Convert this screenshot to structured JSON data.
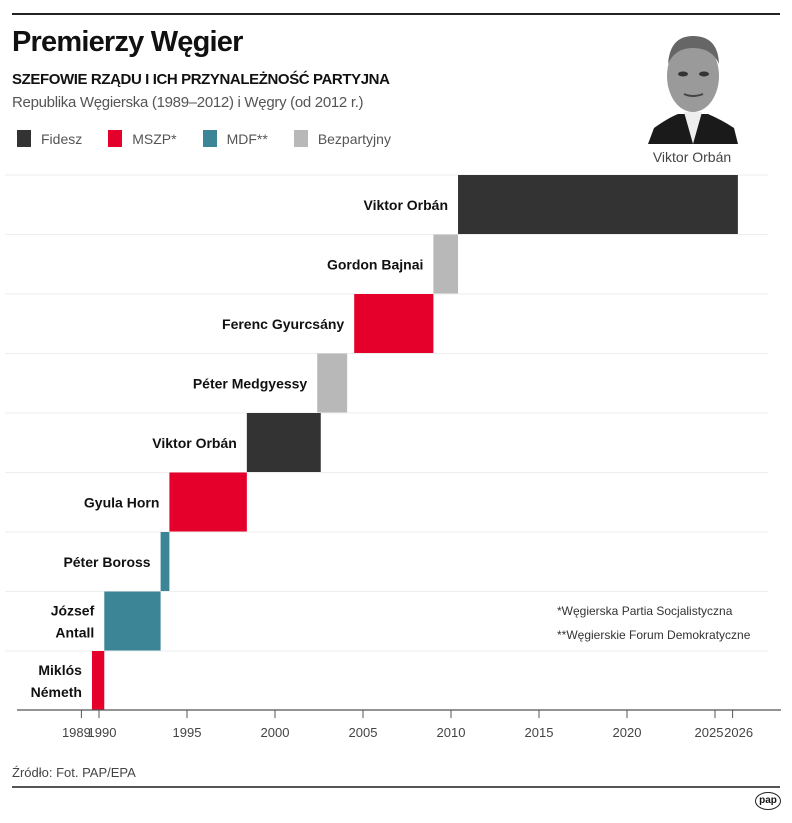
{
  "title": "Premierzy Węgier",
  "subtitle": "SZEFOWIE RZĄDU I ICH PRZYNALEŻNOŚĆ PARTYJNA",
  "subtitle2": "Republika Węgierska (1989–2012) i Węgry (od 2012 r.)",
  "legend": [
    {
      "label": "Fidesz",
      "color": "#333333"
    },
    {
      "label": "MSZP*",
      "color": "#e4002b"
    },
    {
      "label": "MDF**",
      "color": "#3b8597"
    },
    {
      "label": "Bezpartyjny",
      "color": "#b8b8b8"
    }
  ],
  "photo": {
    "caption": "Viktor Orbán",
    "icon": "portrait-photo"
  },
  "footnotes": [
    "*Węgierska Partia Socjalistyczna",
    "**Węgierskie Forum Demokratyczne"
  ],
  "source": "Źródło: Fot. PAP/EPA",
  "logo": "pap",
  "chart_data": {
    "type": "bar",
    "orientation": "horizontal-timeline",
    "xlim": [
      1987.3,
      2027.5
    ],
    "xticks": [
      "1989",
      "1990",
      "1995",
      "2000",
      "2005",
      "2010",
      "2015",
      "2020",
      "2025",
      "2026"
    ],
    "grid": "horizontal row separators",
    "rows": [
      {
        "name": [
          "Viktor Orbán"
        ],
        "party": "Fidesz",
        "start": 2010.4,
        "end": 2026.3
      },
      {
        "name": [
          "Gordon Bajnai"
        ],
        "party": "Bezpartyjny",
        "start": 2009.0,
        "end": 2010.4
      },
      {
        "name": [
          "Ferenc Gyurcsány"
        ],
        "party": "MSZP*",
        "start": 2004.5,
        "end": 2009.0
      },
      {
        "name": [
          "Péter Medgyessy"
        ],
        "party": "Bezpartyjny",
        "start": 2002.4,
        "end": 2004.1
      },
      {
        "name": [
          "Viktor Orbán"
        ],
        "party": "Fidesz",
        "start": 1998.4,
        "end": 2002.6
      },
      {
        "name": [
          "Gyula Horn"
        ],
        "party": "MSZP*",
        "start": 1994.0,
        "end": 1998.4
      },
      {
        "name": [
          "Péter Boross"
        ],
        "party": "MDF**",
        "start": 1993.5,
        "end": 1994.0
      },
      {
        "name": [
          "József",
          "Antall"
        ],
        "party": "MDF**",
        "start": 1990.3,
        "end": 1993.5
      },
      {
        "name": [
          "Miklós",
          "Németh"
        ],
        "party": "MSZP*",
        "start": 1989.6,
        "end": 1990.3
      }
    ]
  }
}
